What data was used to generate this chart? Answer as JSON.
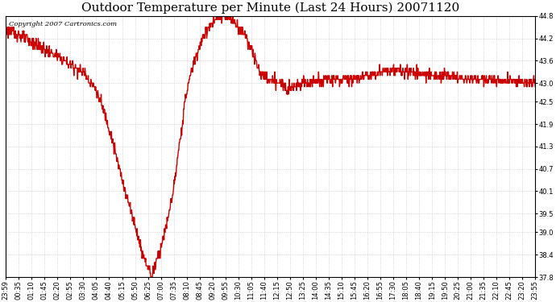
{
  "title": "Outdoor Temperature per Minute (Last 24 Hours) 20071120",
  "copyright_text": "Copyright 2007 Cartronics.com",
  "line_color": "#cc0000",
  "background_color": "#ffffff",
  "grid_color": "#aaaaaa",
  "ylim": [
    37.8,
    44.8
  ],
  "yticks": [
    37.8,
    38.4,
    39.0,
    39.5,
    40.1,
    40.7,
    41.3,
    41.9,
    42.5,
    43.0,
    43.6,
    44.2,
    44.8
  ],
  "xtick_labels": [
    "23:59",
    "00:35",
    "01:10",
    "01:45",
    "02:20",
    "02:55",
    "03:30",
    "04:05",
    "04:40",
    "05:15",
    "05:50",
    "06:25",
    "07:00",
    "07:35",
    "08:10",
    "08:45",
    "09:20",
    "09:55",
    "10:30",
    "11:05",
    "11:40",
    "12:15",
    "12:50",
    "13:25",
    "14:00",
    "14:35",
    "15:10",
    "15:45",
    "16:20",
    "16:55",
    "17:30",
    "18:05",
    "18:40",
    "19:15",
    "19:50",
    "20:25",
    "21:00",
    "21:35",
    "22:10",
    "22:45",
    "23:20",
    "23:55"
  ],
  "title_fontsize": 11,
  "copyright_fontsize": 6,
  "tick_fontsize": 6,
  "line_width": 1.0
}
